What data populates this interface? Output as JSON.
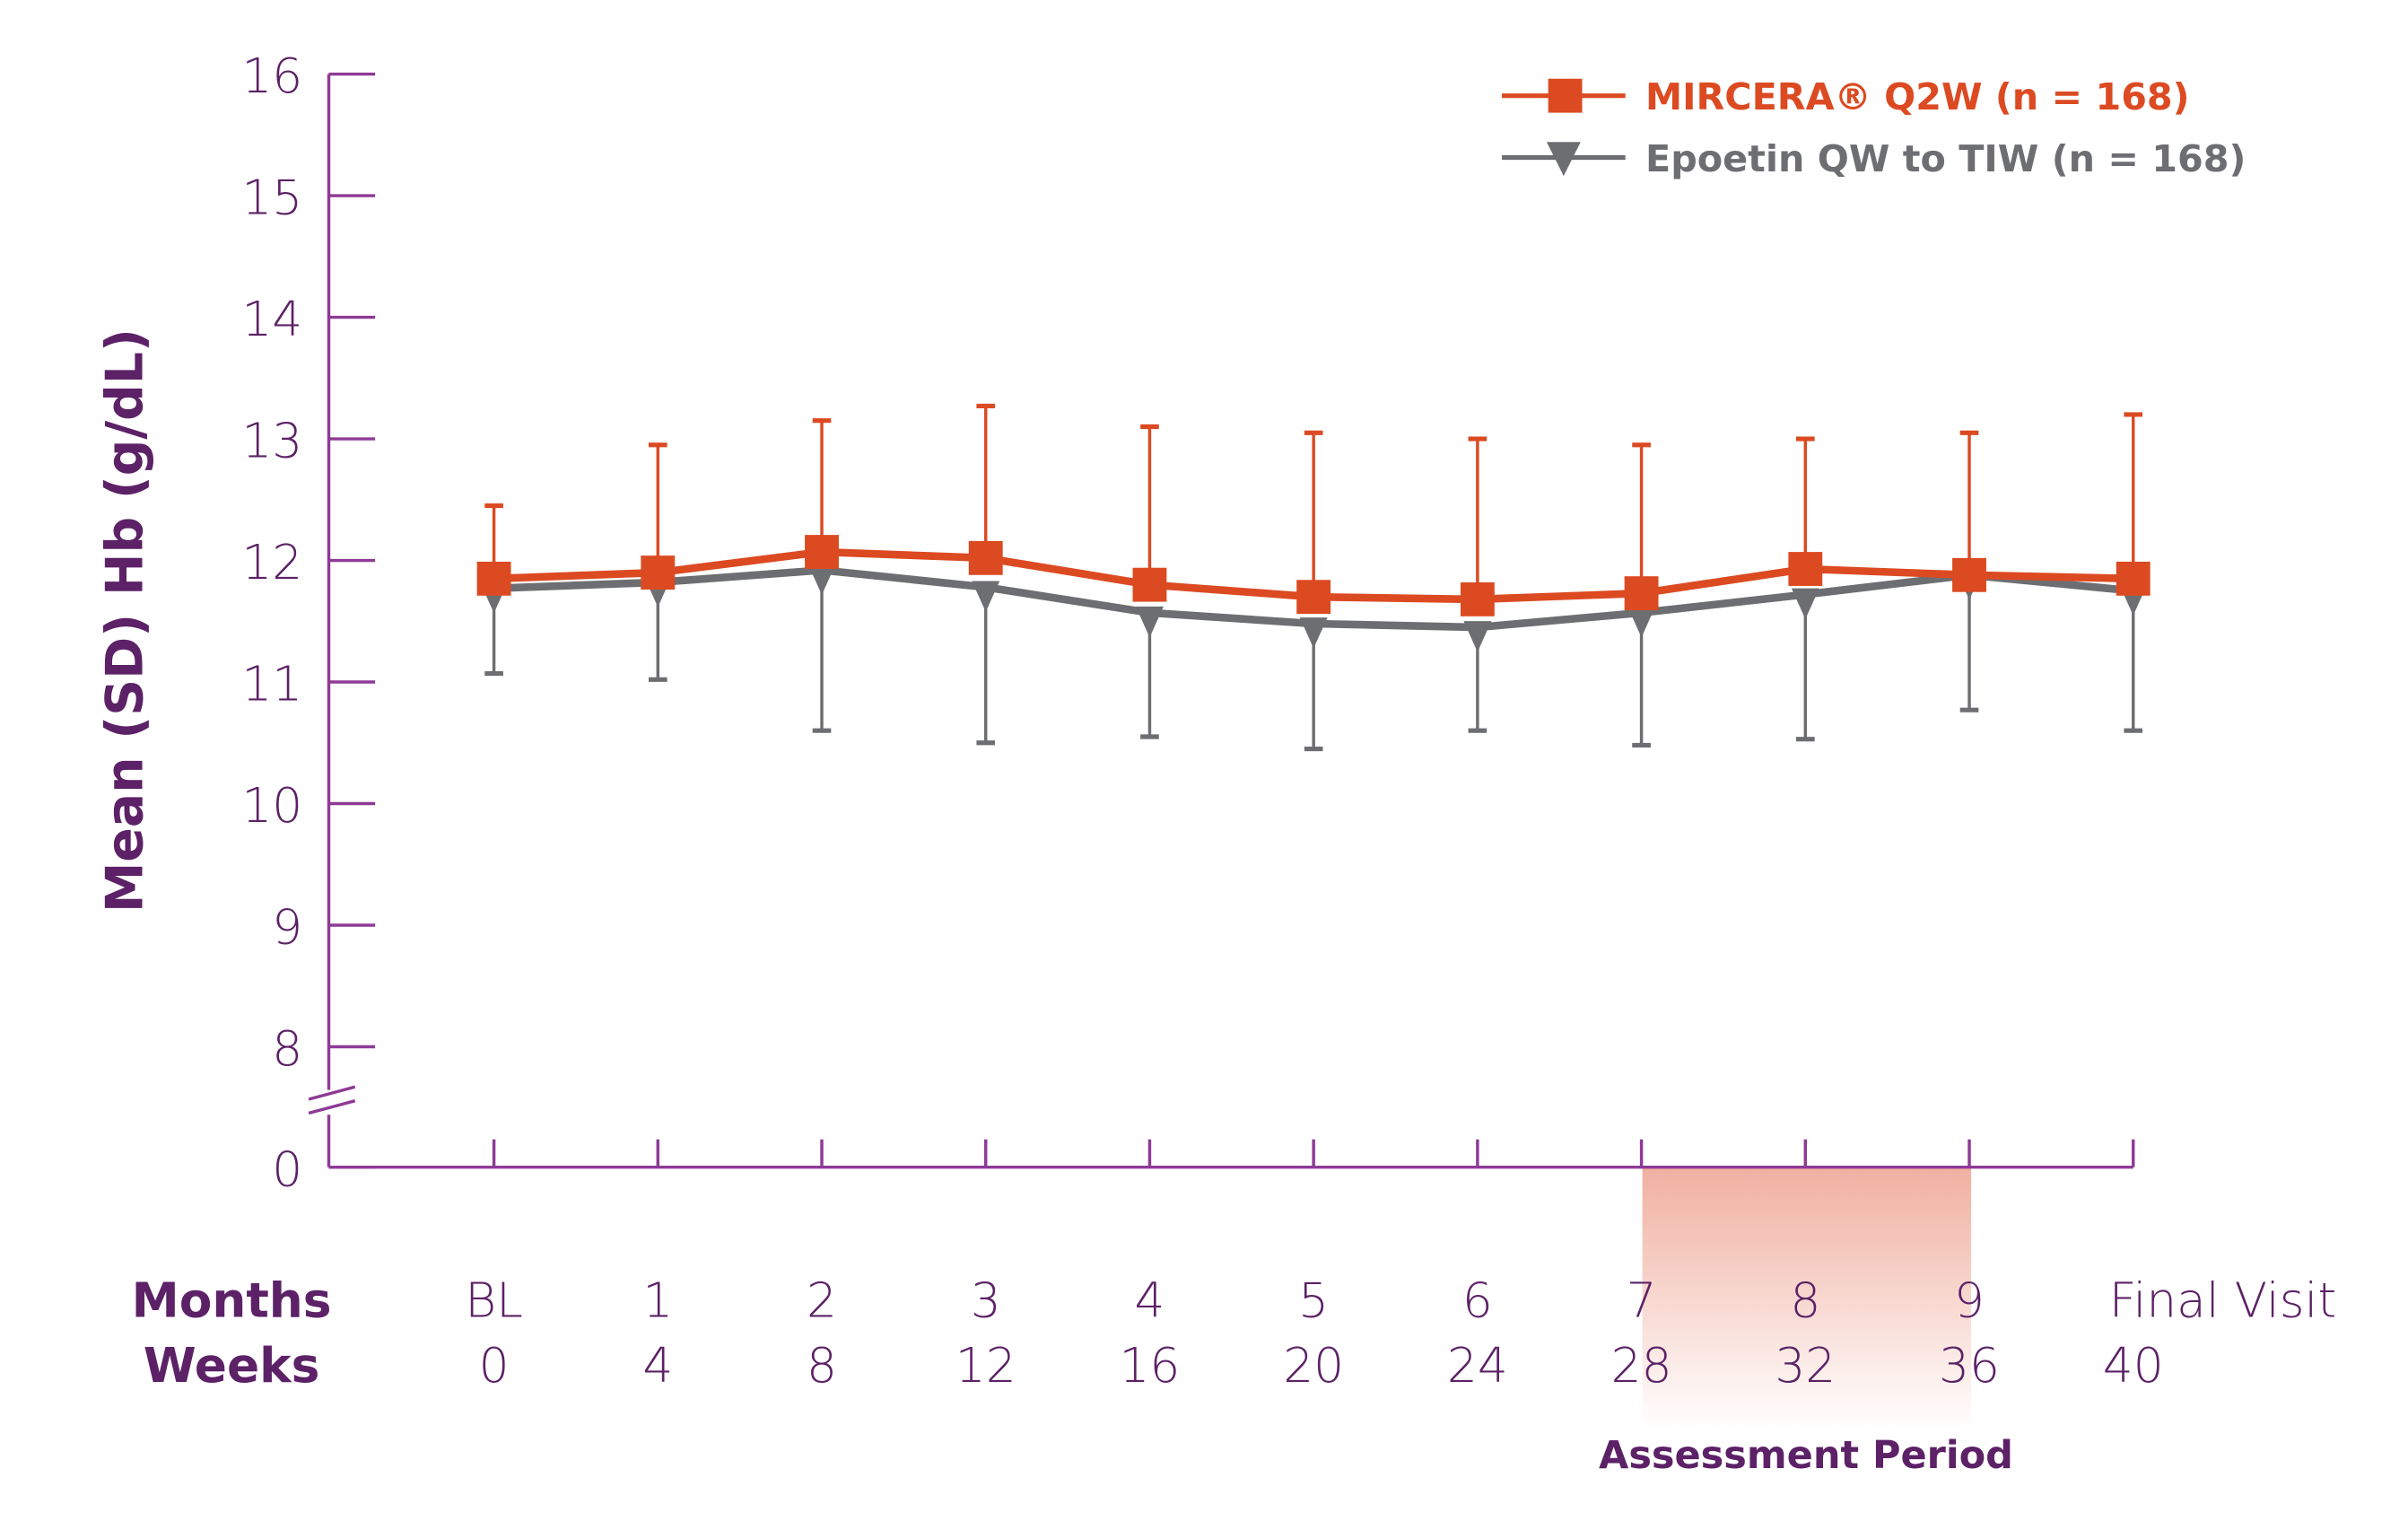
{
  "colors": {
    "axis": "#8e3a96",
    "text": "#5c2166",
    "mircera": "#dc4a22",
    "epoetin": "#6d6e71",
    "assessment": "#f0b0a0"
  },
  "chart_data": {
    "type": "line",
    "title": "",
    "ylabel": "Mean (SD) Hb (g/dL)",
    "xlabel_rows": [
      {
        "label": "Months",
        "ticks": [
          "BL",
          "1",
          "2",
          "3",
          "4",
          "5",
          "6",
          "7",
          "8",
          "9",
          "Final Visit"
        ]
      },
      {
        "label": "Weeks",
        "ticks": [
          "0",
          "4",
          "8",
          "12",
          "16",
          "20",
          "24",
          "28",
          "32",
          "36",
          "40"
        ]
      }
    ],
    "x": [
      0,
      4,
      8,
      12,
      16,
      20,
      24,
      28,
      32,
      36,
      40
    ],
    "yticks": [
      "0",
      "8",
      "9",
      "10",
      "11",
      "12",
      "13",
      "14",
      "15",
      "16"
    ],
    "ylim": [
      8,
      16
    ],
    "axis_break": "between 0 and 8",
    "grid": false,
    "legend_position": "top-right",
    "annotation": {
      "label": "Assessment Period",
      "x_range_weeks": [
        28,
        36
      ]
    },
    "series": [
      {
        "name": "MIRCERA® Q2W (n = 168)",
        "marker": "square",
        "error_bar": "upper",
        "values": [
          11.85,
          11.9,
          12.07,
          12.02,
          11.8,
          11.7,
          11.68,
          11.73,
          11.93,
          11.88,
          11.85
        ],
        "sd_bound": [
          12.45,
          12.95,
          13.15,
          13.27,
          13.1,
          13.05,
          13.0,
          12.95,
          13.0,
          13.05,
          13.2
        ]
      },
      {
        "name": "Epoetin QW to TIW (n = 168)",
        "marker": "triangle-down",
        "error_bar": "lower",
        "values": [
          11.77,
          11.82,
          11.92,
          11.78,
          11.57,
          11.48,
          11.45,
          11.57,
          11.72,
          11.88,
          11.75
        ],
        "sd_bound": [
          11.07,
          11.02,
          10.6,
          10.5,
          10.55,
          10.45,
          10.6,
          10.48,
          10.53,
          10.77,
          10.6
        ]
      }
    ]
  }
}
